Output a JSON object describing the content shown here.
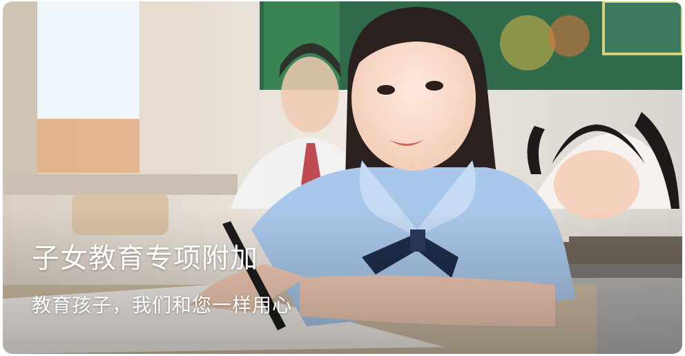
{
  "banner": {
    "title": "子女教育专项附加",
    "subtitle": "教育孩子，我们和您一样用心",
    "image_subject": "classroom-photo"
  },
  "colors": {
    "text": "#ffffff",
    "chalkboard": "#2f6a4a",
    "uniform_shirt": "#a9c7ea",
    "bow_tie": "#1f2d4a"
  }
}
